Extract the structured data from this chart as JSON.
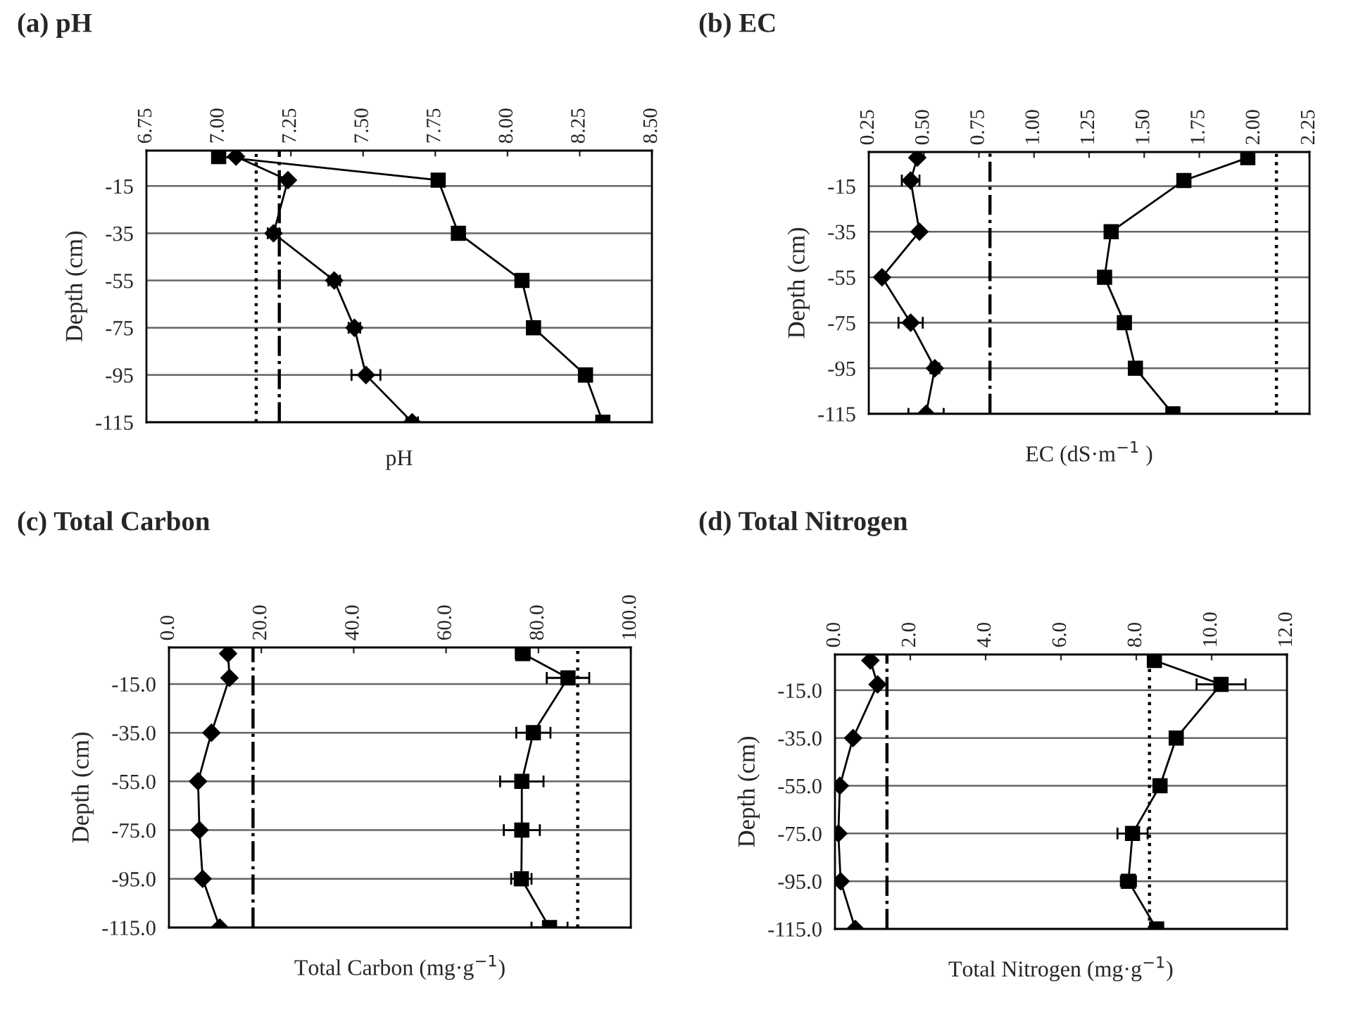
{
  "chart_data": [
    {
      "type": "line",
      "title": "(a) pH",
      "xlabel": "pH",
      "ylabel": "Depth (cm)",
      "xlim": [
        6.75,
        8.5
      ],
      "xticks": [
        {
          "value": 6.75,
          "label": "6.75"
        },
        {
          "value": 7.0,
          "label": "7.00"
        },
        {
          "value": 7.25,
          "label": "7.25"
        },
        {
          "value": 7.5,
          "label": "7.50"
        },
        {
          "value": 7.75,
          "label": "7.75"
        },
        {
          "value": 8.0,
          "label": "8.00"
        },
        {
          "value": 8.25,
          "label": "8.25"
        },
        {
          "value": 8.5,
          "label": "8.50"
        }
      ],
      "ylim": [
        -115,
        0
      ],
      "yticks": [
        -15,
        -35,
        -55,
        -75,
        -95,
        -115
      ],
      "grid": "y",
      "series": [
        {
          "color": "#000000",
          "marker": "diamond",
          "x": [
            7.06,
            7.24,
            7.19,
            7.4,
            7.47,
            7.51,
            7.67
          ],
          "values": [
            -2.5,
            -12.5,
            -35,
            -55,
            -75,
            -95,
            -115
          ],
          "xerrors": [
            null,
            null,
            0.02,
            0.02,
            0.02,
            0.05,
            0.02
          ]
        },
        {
          "color": "#000000",
          "marker": "square",
          "x": [
            7.0,
            7.76,
            7.83,
            8.05,
            8.09,
            8.27,
            8.33
          ],
          "values": [
            -2.5,
            -12.5,
            -35,
            -55,
            -75,
            -95,
            -115
          ],
          "xerrors": [
            0.02,
            null,
            null,
            0.02,
            null,
            null,
            null
          ]
        }
      ],
      "ref_lines": [
        {
          "axis": "x",
          "value": 7.13,
          "line_style": "dotted",
          "color": "#000000"
        },
        {
          "axis": "x",
          "value": 7.21,
          "line_style": "dashdot",
          "color": "#000000"
        }
      ]
    },
    {
      "type": "line",
      "title": "(b) EC",
      "xlabel": "EC (dS·m$^{−1}$ )",
      "ylabel": "Depth (cm)",
      "xlim": [
        0.25,
        2.25
      ],
      "xticks": [
        {
          "value": 0.25,
          "label": "0.25"
        },
        {
          "value": 0.5,
          "label": "0.50"
        },
        {
          "value": 0.75,
          "label": "0.75"
        },
        {
          "value": 1.0,
          "label": "1.00"
        },
        {
          "value": 1.25,
          "label": "1.25"
        },
        {
          "value": 1.5,
          "label": "1.50"
        },
        {
          "value": 1.75,
          "label": "1.75"
        },
        {
          "value": 2.0,
          "label": "2.00"
        },
        {
          "value": 2.25,
          "label": "2.25"
        }
      ],
      "ylim": [
        -115,
        0
      ],
      "yticks": [
        -15,
        -35,
        -55,
        -75,
        -95,
        -115
      ],
      "grid": "y",
      "series": [
        {
          "color": "#000000",
          "marker": "diamond",
          "x": [
            0.47,
            0.44,
            0.48,
            0.31,
            0.44,
            0.55,
            0.51
          ],
          "values": [
            -2.5,
            -12.5,
            -35,
            -55,
            -75,
            -95,
            -115
          ],
          "xerrors": [
            null,
            0.04,
            null,
            null,
            0.055,
            0.02,
            0.08
          ]
        },
        {
          "color": "#000000",
          "marker": "square",
          "x": [
            1.97,
            1.68,
            1.35,
            1.32,
            1.41,
            1.46,
            1.63
          ],
          "values": [
            -2.5,
            -12.5,
            -35,
            -55,
            -75,
            -95,
            -115
          ]
        }
      ],
      "ref_lines": [
        {
          "axis": "x",
          "value": 0.8,
          "line_style": "dashdot",
          "color": "#000000"
        },
        {
          "axis": "x",
          "value": 2.1,
          "line_style": "dotted",
          "color": "#000000"
        }
      ]
    },
    {
      "type": "line",
      "title": "(c) Total Carbon",
      "xlabel": "Total Carbon (mg·g$^{−1}$)",
      "ylabel": "Depth (cm)",
      "xlim": [
        0,
        100
      ],
      "xticks": [
        {
          "value": 0,
          "label": "0.0"
        },
        {
          "value": 20,
          "label": "20.0"
        },
        {
          "value": 40,
          "label": "40.0"
        },
        {
          "value": 60,
          "label": "60.0"
        },
        {
          "value": 80,
          "label": "80.0"
        },
        {
          "value": 100,
          "label": "100.0"
        }
      ],
      "ylim": [
        -115,
        0
      ],
      "yticks": [
        {
          "value": -15,
          "label": "-15.0"
        },
        {
          "value": -35,
          "label": "-35.0"
        },
        {
          "value": -55,
          "label": "-55.0"
        },
        {
          "value": -75,
          "label": "-75.0"
        },
        {
          "value": -95,
          "label": "-95.0"
        },
        {
          "value": -115,
          "label": "-115.0"
        }
      ],
      "grid": "y",
      "series": [
        {
          "color": "#000000",
          "marker": "diamond",
          "x": [
            12.8,
            13.1,
            9.2,
            6.3,
            6.6,
            7.3,
            11.0
          ],
          "values": [
            -2.5,
            -12.5,
            -35,
            -55,
            -75,
            -95,
            -115
          ]
        },
        {
          "color": "#000000",
          "marker": "square",
          "x": [
            76.6,
            86.4,
            78.9,
            76.4,
            76.4,
            76.3,
            82.4
          ],
          "values": [
            -2.5,
            -12.5,
            -35,
            -55,
            -75,
            -95,
            -115
          ],
          "xerrors": [
            1.5,
            4.6,
            3.7,
            4.7,
            3.9,
            2.2,
            3.9
          ]
        }
      ],
      "ref_lines": [
        {
          "axis": "x",
          "value": 18.2,
          "line_style": "dashdot",
          "color": "#000000"
        },
        {
          "axis": "x",
          "value": 88.5,
          "line_style": "dotted",
          "color": "#000000"
        }
      ]
    },
    {
      "type": "line",
      "title": "(d) Total Nitrogen",
      "xlabel": "Total Nitrogen (mg·g$^{−1}$)",
      "ylabel": "Depth (cm)",
      "xlim": [
        0,
        12
      ],
      "xticks": [
        {
          "value": 0,
          "label": "0.0"
        },
        {
          "value": 2,
          "label": "2.0"
        },
        {
          "value": 4,
          "label": "4.0"
        },
        {
          "value": 6,
          "label": "6.0"
        },
        {
          "value": 8,
          "label": "8.0"
        },
        {
          "value": 10,
          "label": "10.0"
        },
        {
          "value": 12,
          "label": "12.0"
        }
      ],
      "ylim": [
        -115,
        0
      ],
      "yticks": [
        {
          "value": -15,
          "label": "-15.0"
        },
        {
          "value": -35,
          "label": "-35.0"
        },
        {
          "value": -55,
          "label": "-55.0"
        },
        {
          "value": -75,
          "label": "-75.0"
        },
        {
          "value": -95,
          "label": "-95.0"
        },
        {
          "value": -115,
          "label": "-115.0"
        }
      ],
      "grid": "y",
      "series": [
        {
          "color": "#000000",
          "marker": "diamond",
          "x": [
            0.94,
            1.13,
            0.48,
            0.13,
            0.09,
            0.15,
            0.54
          ],
          "values": [
            -2.5,
            -12.5,
            -35,
            -55,
            -75,
            -95,
            -115
          ]
        },
        {
          "color": "#000000",
          "marker": "square",
          "x": [
            8.48,
            10.25,
            9.06,
            8.63,
            7.9,
            7.79,
            8.54
          ],
          "values": [
            -2.5,
            -12.5,
            -35,
            -55,
            -75,
            -95,
            -115
          ],
          "xerrors": [
            null,
            0.65,
            null,
            0.15,
            0.4,
            0.2,
            null
          ]
        }
      ],
      "ref_lines": [
        {
          "axis": "x",
          "value": 1.38,
          "line_style": "dashdot",
          "color": "#000000"
        },
        {
          "axis": "x",
          "value": 8.35,
          "line_style": "dotted",
          "color": "#000000"
        }
      ]
    }
  ]
}
